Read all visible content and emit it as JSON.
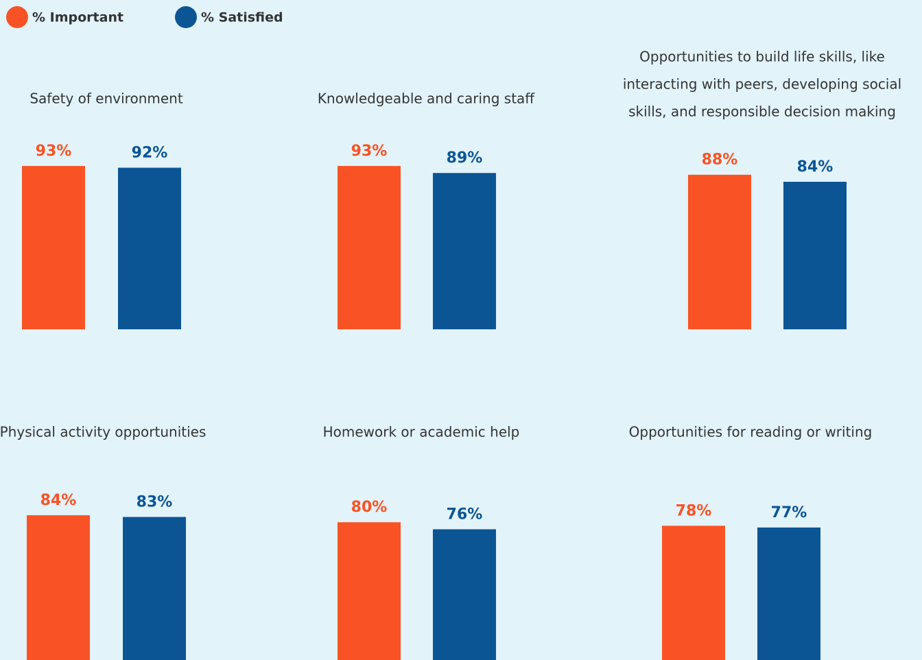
{
  "chart_data": [
    {
      "type": "bar",
      "title": "Safety of environment",
      "series": [
        {
          "name": "% Important",
          "color": "#f95325",
          "values": [
            93
          ],
          "value_labels": [
            "93%"
          ]
        },
        {
          "name": "% Satisfied",
          "color": "#0c5595",
          "values": [
            92
          ],
          "value_labels": [
            "92%"
          ]
        }
      ]
    },
    {
      "type": "bar",
      "title": "Knowledgeable and caring staff",
      "series": [
        {
          "name": "% Important",
          "color": "#f95325",
          "values": [
            93
          ],
          "value_labels": [
            "93%"
          ]
        },
        {
          "name": "% Satisfied",
          "color": "#0c5595",
          "values": [
            89
          ],
          "value_labels": [
            "89%"
          ]
        }
      ]
    },
    {
      "type": "bar",
      "title": [
        "Opportunities to build life skills, like",
        "interacting with peers, developing social",
        "skills, and responsible decision making"
      ],
      "series": [
        {
          "name": "% Important",
          "color": "#f95325",
          "values": [
            88
          ],
          "value_labels": [
            "88%"
          ]
        },
        {
          "name": "% Satisfied",
          "color": "#0c5595",
          "values": [
            84
          ],
          "value_labels": [
            "84%"
          ]
        }
      ]
    },
    {
      "type": "bar",
      "title": "Physical activity opportunities",
      "series": [
        {
          "name": "% Important",
          "color": "#f95325",
          "values": [
            84
          ],
          "value_labels": [
            "84%"
          ]
        },
        {
          "name": "% Satisfied",
          "color": "#0c5595",
          "values": [
            83
          ],
          "value_labels": [
            "83%"
          ]
        }
      ]
    },
    {
      "type": "bar",
      "title": "Homework or academic help",
      "series": [
        {
          "name": "% Important",
          "color": "#f95325",
          "values": [
            80
          ],
          "value_labels": [
            "80%"
          ]
        },
        {
          "name": "% Satisfied",
          "color": "#0c5595",
          "values": [
            76
          ],
          "value_labels": [
            "76%"
          ]
        }
      ]
    },
    {
      "type": "bar",
      "title": "Opportunities for reading or writing",
      "series": [
        {
          "name": "% Important",
          "color": "#f95325",
          "values": [
            78
          ],
          "value_labels": [
            "78%"
          ]
        },
        {
          "name": "% Satisfied",
          "color": "#0c5595",
          "values": [
            77
          ],
          "value_labels": [
            "77%"
          ]
        }
      ]
    }
  ]
}
